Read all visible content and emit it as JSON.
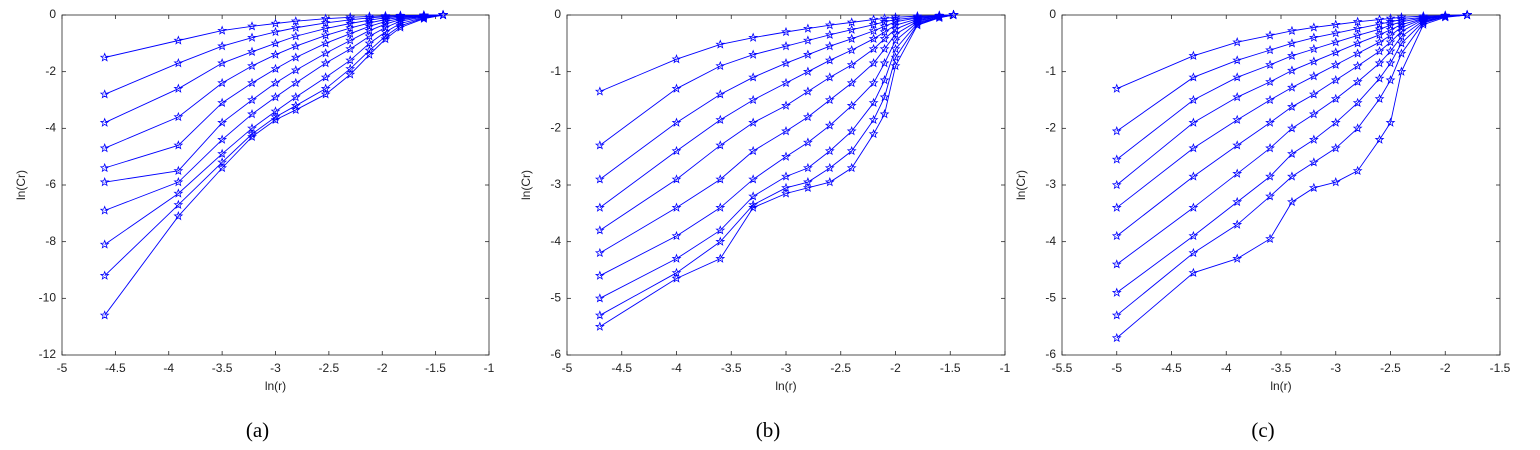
{
  "chart_data": [
    {
      "type": "line",
      "caption": "(a)",
      "xlabel": "ln(r)",
      "ylabel": "ln(Cr)",
      "color": "#0000ff",
      "xlim": [
        -5,
        -1
      ],
      "ylim": [
        -12,
        0
      ],
      "xticks": [
        -5,
        -4.5,
        -4,
        -3.5,
        -3,
        -2.5,
        -2,
        -1.5,
        -1
      ],
      "yticks": [
        -12,
        -10,
        -8,
        -6,
        -4,
        -2,
        0
      ],
      "x": [
        -4.6,
        -3.91,
        -3.5,
        -3.22,
        -3.0,
        -2.81,
        -2.53,
        -2.3,
        -2.12,
        -1.97,
        -1.83,
        -1.61,
        -1.43
      ],
      "series": [
        {
          "values": [
            -1.5,
            -0.9,
            -0.55,
            -0.4,
            -0.3,
            -0.22,
            -0.13,
            -0.08,
            -0.05,
            -0.03,
            -0.02,
            -0.01,
            0
          ]
        },
        {
          "values": [
            -2.8,
            -1.7,
            -1.1,
            -0.8,
            -0.6,
            -0.45,
            -0.28,
            -0.17,
            -0.1,
            -0.06,
            -0.03,
            -0.01,
            0
          ]
        },
        {
          "values": [
            -3.8,
            -2.6,
            -1.7,
            -1.3,
            -1.0,
            -0.75,
            -0.48,
            -0.3,
            -0.18,
            -0.1,
            -0.05,
            -0.02,
            0
          ]
        },
        {
          "values": [
            -4.7,
            -3.6,
            -2.4,
            -1.8,
            -1.4,
            -1.1,
            -0.72,
            -0.46,
            -0.28,
            -0.16,
            -0.08,
            -0.03,
            0
          ]
        },
        {
          "values": [
            -5.4,
            -4.6,
            -3.1,
            -2.4,
            -1.9,
            -1.5,
            -1.0,
            -0.66,
            -0.4,
            -0.23,
            -0.12,
            -0.04,
            0
          ]
        },
        {
          "values": [
            -5.9,
            -5.5,
            -3.8,
            -3.0,
            -2.4,
            -1.95,
            -1.35,
            -0.9,
            -0.55,
            -0.32,
            -0.16,
            -0.05,
            0
          ]
        },
        {
          "values": [
            -6.9,
            -5.9,
            -4.4,
            -3.5,
            -2.9,
            -2.4,
            -1.7,
            -1.2,
            -0.75,
            -0.44,
            -0.22,
            -0.07,
            0
          ]
        },
        {
          "values": [
            -8.1,
            -6.3,
            -4.9,
            -4.0,
            -3.4,
            -2.9,
            -2.2,
            -1.6,
            -1.0,
            -0.6,
            -0.3,
            -0.09,
            0
          ]
        },
        {
          "values": [
            -9.2,
            -6.7,
            -5.2,
            -4.2,
            -3.6,
            -3.2,
            -2.6,
            -1.9,
            -1.25,
            -0.75,
            -0.38,
            -0.11,
            0
          ]
        },
        {
          "values": [
            -10.6,
            -7.1,
            -5.4,
            -4.3,
            -3.7,
            -3.35,
            -2.8,
            -2.1,
            -1.4,
            -0.85,
            -0.44,
            -0.13,
            0
          ]
        }
      ]
    },
    {
      "type": "line",
      "caption": "(b)",
      "xlabel": "ln(r)",
      "ylabel": "ln(Cr)",
      "color": "#0000ff",
      "xlim": [
        -5,
        -1
      ],
      "ylim": [
        -6,
        0
      ],
      "xticks": [
        -5,
        -4.5,
        -4,
        -3.5,
        -3,
        -2.5,
        -2,
        -1.5,
        -1
      ],
      "yticks": [
        -6,
        -5,
        -4,
        -3,
        -2,
        -1,
        0
      ],
      "x": [
        -4.7,
        -4.0,
        -3.6,
        -3.3,
        -3.0,
        -2.8,
        -2.6,
        -2.4,
        -2.2,
        -2.1,
        -2.0,
        -1.8,
        -1.6,
        -1.47
      ],
      "series": [
        {
          "values": [
            -1.35,
            -0.78,
            -0.52,
            -0.4,
            -0.3,
            -0.24,
            -0.18,
            -0.13,
            -0.08,
            -0.06,
            -0.04,
            -0.02,
            -0.01,
            0
          ]
        },
        {
          "values": [
            -2.3,
            -1.3,
            -0.9,
            -0.7,
            -0.55,
            -0.45,
            -0.35,
            -0.26,
            -0.17,
            -0.12,
            -0.08,
            -0.04,
            -0.01,
            0
          ]
        },
        {
          "values": [
            -2.9,
            -1.9,
            -1.4,
            -1.1,
            -0.85,
            -0.7,
            -0.55,
            -0.42,
            -0.28,
            -0.2,
            -0.12,
            -0.05,
            -0.02,
            0
          ]
        },
        {
          "values": [
            -3.4,
            -2.4,
            -1.85,
            -1.5,
            -1.2,
            -1.0,
            -0.8,
            -0.62,
            -0.42,
            -0.3,
            -0.18,
            -0.07,
            -0.02,
            0
          ]
        },
        {
          "values": [
            -3.8,
            -2.9,
            -2.3,
            -1.9,
            -1.6,
            -1.35,
            -1.1,
            -0.88,
            -0.6,
            -0.42,
            -0.25,
            -0.09,
            -0.03,
            0
          ]
        },
        {
          "values": [
            -4.2,
            -3.4,
            -2.9,
            -2.4,
            -2.05,
            -1.8,
            -1.5,
            -1.2,
            -0.85,
            -0.6,
            -0.34,
            -0.11,
            -0.03,
            0
          ]
        },
        {
          "values": [
            -4.6,
            -3.9,
            -3.4,
            -2.9,
            -2.5,
            -2.25,
            -1.95,
            -1.6,
            -1.2,
            -0.85,
            -0.45,
            -0.13,
            -0.04,
            0
          ]
        },
        {
          "values": [
            -5.0,
            -4.3,
            -3.8,
            -3.2,
            -2.85,
            -2.7,
            -2.4,
            -2.05,
            -1.55,
            -1.15,
            -0.6,
            -0.15,
            -0.04,
            0
          ]
        },
        {
          "values": [
            -5.3,
            -4.55,
            -4.0,
            -3.35,
            -3.05,
            -2.95,
            -2.7,
            -2.4,
            -1.85,
            -1.45,
            -0.75,
            -0.17,
            -0.04,
            0
          ]
        },
        {
          "values": [
            -5.5,
            -4.65,
            -4.3,
            -3.4,
            -3.15,
            -3.05,
            -2.95,
            -2.7,
            -2.1,
            -1.75,
            -0.9,
            -0.18,
            -0.05,
            0
          ]
        }
      ]
    },
    {
      "type": "line",
      "caption": "(c)",
      "xlabel": "ln(r)",
      "ylabel": "ln(Cr)",
      "color": "#0000ff",
      "xlim": [
        -5.5,
        -1.5
      ],
      "ylim": [
        -6,
        0
      ],
      "xticks": [
        -5.5,
        -5,
        -4.5,
        -4,
        -3.5,
        -3,
        -2.5,
        -2,
        -1.5
      ],
      "yticks": [
        -6,
        -5,
        -4,
        -3,
        -2,
        -1,
        0
      ],
      "x": [
        -5.0,
        -4.3,
        -3.9,
        -3.6,
        -3.4,
        -3.2,
        -3.0,
        -2.8,
        -2.6,
        -2.5,
        -2.4,
        -2.2,
        -2.0,
        -1.8
      ],
      "series": [
        {
          "values": [
            -1.3,
            -0.72,
            -0.48,
            -0.36,
            -0.28,
            -0.22,
            -0.17,
            -0.12,
            -0.08,
            -0.06,
            -0.04,
            -0.02,
            -0.01,
            0
          ]
        },
        {
          "values": [
            -2.05,
            -1.1,
            -0.8,
            -0.62,
            -0.5,
            -0.4,
            -0.32,
            -0.24,
            -0.16,
            -0.12,
            -0.08,
            -0.04,
            -0.01,
            0
          ]
        },
        {
          "values": [
            -2.55,
            -1.5,
            -1.1,
            -0.88,
            -0.72,
            -0.6,
            -0.48,
            -0.36,
            -0.25,
            -0.18,
            -0.12,
            -0.05,
            -0.02,
            0
          ]
        },
        {
          "values": [
            -3.0,
            -1.9,
            -1.45,
            -1.18,
            -0.98,
            -0.82,
            -0.66,
            -0.5,
            -0.35,
            -0.26,
            -0.17,
            -0.06,
            -0.02,
            0
          ]
        },
        {
          "values": [
            -3.4,
            -2.35,
            -1.85,
            -1.5,
            -1.28,
            -1.08,
            -0.88,
            -0.68,
            -0.48,
            -0.36,
            -0.22,
            -0.07,
            -0.02,
            0
          ]
        },
        {
          "values": [
            -3.9,
            -2.85,
            -2.3,
            -1.9,
            -1.62,
            -1.4,
            -1.15,
            -0.9,
            -0.64,
            -0.48,
            -0.29,
            -0.08,
            -0.02,
            0
          ]
        },
        {
          "values": [
            -4.4,
            -3.4,
            -2.8,
            -2.35,
            -2.0,
            -1.75,
            -1.48,
            -1.18,
            -0.85,
            -0.64,
            -0.38,
            -0.1,
            -0.03,
            0
          ]
        },
        {
          "values": [
            -4.9,
            -3.9,
            -3.3,
            -2.85,
            -2.45,
            -2.2,
            -1.9,
            -1.55,
            -1.12,
            -0.85,
            -0.5,
            -0.12,
            -0.03,
            0
          ]
        },
        {
          "values": [
            -5.3,
            -4.2,
            -3.7,
            -3.2,
            -2.85,
            -2.6,
            -2.35,
            -2.0,
            -1.48,
            -1.15,
            -0.68,
            -0.14,
            -0.03,
            0
          ]
        },
        {
          "values": [
            -5.7,
            -4.55,
            -4.3,
            -3.95,
            -3.3,
            -3.05,
            -2.95,
            -2.75,
            -2.2,
            -1.9,
            -1.0,
            -0.17,
            -0.04,
            0
          ]
        }
      ]
    }
  ]
}
